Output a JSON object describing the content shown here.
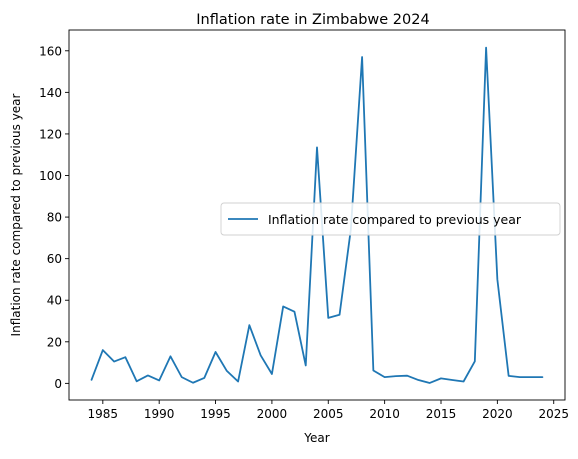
{
  "chart_data": {
    "type": "line",
    "title": "Inflation rate in Zimbabwe 2024",
    "xlabel": "Year",
    "ylabel": "Inflation rate compared to previous year",
    "xlim": [
      1982,
      2026
    ],
    "ylim": [
      -8,
      170
    ],
    "x_ticks": [
      1985,
      1990,
      1995,
      2000,
      2005,
      2010,
      2015,
      2020,
      2025
    ],
    "y_ticks": [
      0,
      20,
      40,
      60,
      80,
      100,
      120,
      140,
      160
    ],
    "grid": false,
    "legend_position": "center-right",
    "series": [
      {
        "name": "Inflation rate compared to previous year",
        "color": "#1f77b4",
        "x": [
          1984,
          1985,
          1986,
          1987,
          1988,
          1989,
          1990,
          1991,
          1992,
          1993,
          1994,
          1995,
          1996,
          1997,
          1998,
          1999,
          2000,
          2001,
          2002,
          2003,
          2004,
          2005,
          2006,
          2007,
          2008,
          2009,
          2010,
          2011,
          2012,
          2013,
          2014,
          2015,
          2016,
          2017,
          2018,
          2019,
          2020,
          2021,
          2022,
          2023,
          2024
        ],
        "values": [
          1.7,
          16.0,
          10.5,
          12.6,
          1.0,
          3.8,
          1.4,
          13.0,
          3.0,
          0.3,
          2.6,
          15.1,
          6.0,
          0.9,
          28.0,
          13.5,
          4.5,
          37.0,
          34.5,
          8.6,
          113.5,
          31.5,
          33.0,
          74.0,
          157.0,
          6.2,
          3.0,
          3.5,
          3.7,
          1.6,
          0.2,
          2.4,
          1.6,
          0.9,
          10.6,
          161.5,
          50.0,
          3.6,
          3.0,
          3.0,
          3.0
        ]
      }
    ]
  }
}
